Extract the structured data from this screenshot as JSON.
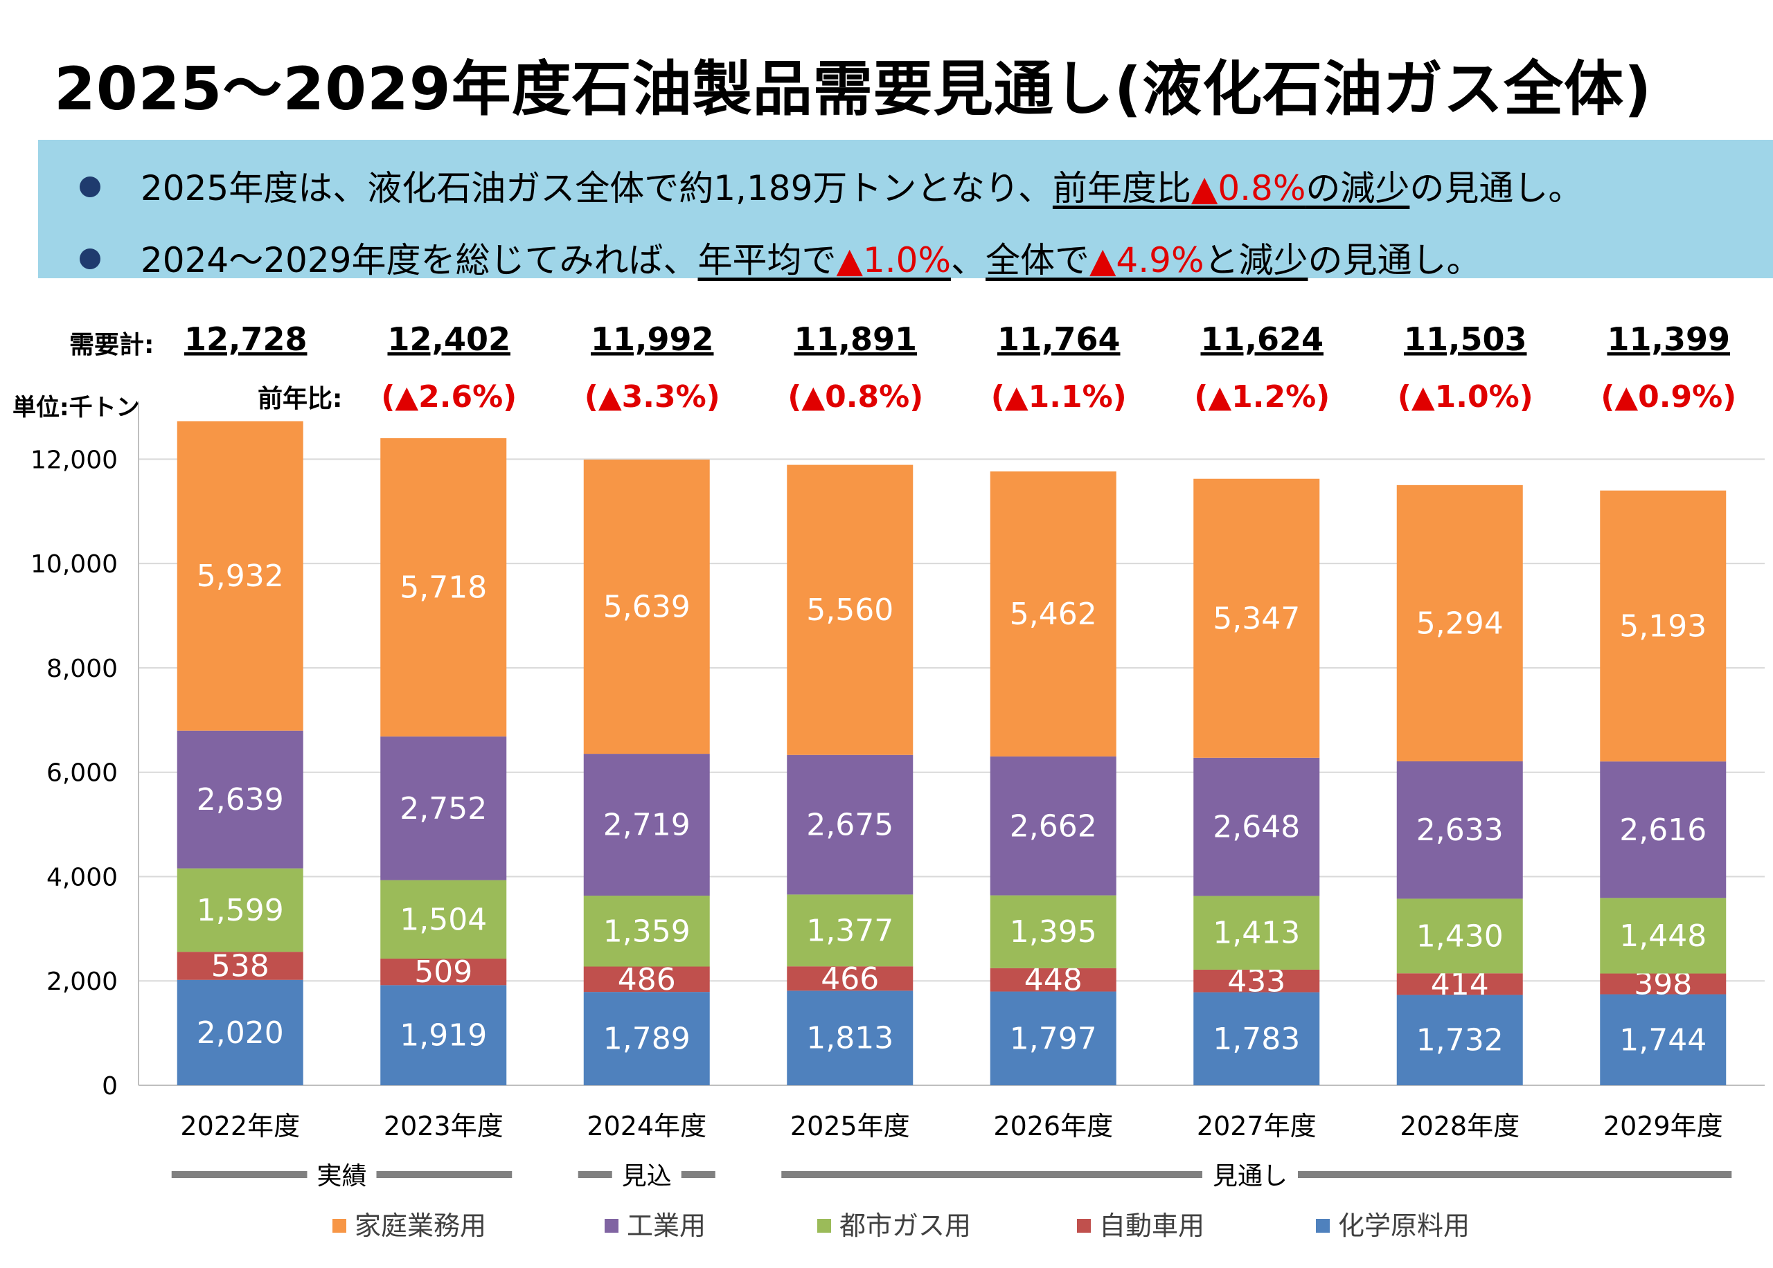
{
  "title": "2025～2029年度石油製品需要見通し(液化石油ガス全体)",
  "bullets": [
    {
      "text_a": "2025年度は、液化石油ガス全体で約1,189万トンとなり、",
      "u1a": "前年度比",
      "r1": "▲0.8%",
      "u1b": "の減少",
      "text_b": "の見通し。"
    },
    {
      "text_a": "2024～2029年度を総じてみれば、",
      "u1a": "年平均で",
      "r1": "▲1.0%",
      "text_mid": "、",
      "u2a": "全体で",
      "r2": "▲4.9%",
      "u2b": "と減少",
      "text_b": "の見通し。"
    }
  ],
  "colors": {
    "家庭業務用": "#f79646",
    "工業用": "#8064a2",
    "都市ガス用": "#9bbb59",
    "自動車用": "#c0504d",
    "化学原料用": "#4f81bd",
    "growth_text": "#e00000",
    "banner": "#9fd5e8"
  },
  "chart_data": {
    "type": "bar",
    "stacked": true,
    "unit_label": "単位:千トン",
    "categories": [
      "2022年度",
      "2023年度",
      "2024年度",
      "2025年度",
      "2026年度",
      "2027年度",
      "2028年度",
      "2029年度"
    ],
    "series": [
      {
        "name": "化学原料用",
        "values": [
          2020,
          1919,
          1789,
          1813,
          1797,
          1783,
          1732,
          1744
        ]
      },
      {
        "name": "自動車用",
        "values": [
          538,
          509,
          486,
          466,
          448,
          433,
          414,
          398
        ]
      },
      {
        "name": "都市ガス用",
        "values": [
          1599,
          1504,
          1359,
          1377,
          1395,
          1413,
          1430,
          1448
        ]
      },
      {
        "name": "工業用",
        "values": [
          2639,
          2752,
          2719,
          2675,
          2662,
          2648,
          2633,
          2616
        ]
      },
      {
        "name": "家庭業務用",
        "values": [
          5932,
          5718,
          5639,
          5560,
          5462,
          5347,
          5294,
          5193
        ]
      }
    ],
    "data_labels": {
      "化学原料用": [
        "2,020",
        "1,919",
        "1,789",
        "1,813",
        "1,797",
        "1,783",
        "1,732",
        "1,744"
      ],
      "自動車用": [
        "538",
        "509",
        "486",
        "466",
        "448",
        "433",
        "414",
        "398"
      ],
      "都市ガス用": [
        "1,599",
        "1,504",
        "1,359",
        "1,377",
        "1,395",
        "1,413",
        "1,430",
        "1,448"
      ],
      "工業用": [
        "2,639",
        "2,752",
        "2,719",
        "2,675",
        "2,662",
        "2,648",
        "2,633",
        "2,616"
      ],
      "家庭業務用": [
        "5,932",
        "5,718",
        "5,639",
        "5,560",
        "5,462",
        "5,347",
        "5,294",
        "5,193"
      ]
    },
    "totals_label": "需要計:",
    "totals": [
      "12,728",
      "12,402",
      "11,992",
      "11,891",
      "11,764",
      "11,624",
      "11,503",
      "11,399"
    ],
    "yoy_label": "前年比:",
    "yoy": [
      "",
      "(▲2.6%)",
      "(▲3.3%)",
      "(▲0.8%)",
      "(▲1.1%)",
      "(▲1.2%)",
      "(▲1.0%)",
      "(▲0.9%)"
    ],
    "ylim": [
      0,
      13000
    ],
    "yticks": [
      0,
      2000,
      4000,
      6000,
      8000,
      10000,
      12000
    ],
    "ytick_labels": [
      "0",
      "2,000",
      "4,000",
      "6,000",
      "8,000",
      "10,000",
      "12,000"
    ],
    "grid": true,
    "periods": [
      {
        "label": "実績",
        "start": 0,
        "end": 1
      },
      {
        "label": "見込",
        "start": 2,
        "end": 2
      },
      {
        "label": "見通し",
        "start": 3,
        "end": 7
      }
    ],
    "legend_order": [
      "家庭業務用",
      "工業用",
      "都市ガス用",
      "自動車用",
      "化学原料用"
    ],
    "legend_position": "bottom"
  }
}
